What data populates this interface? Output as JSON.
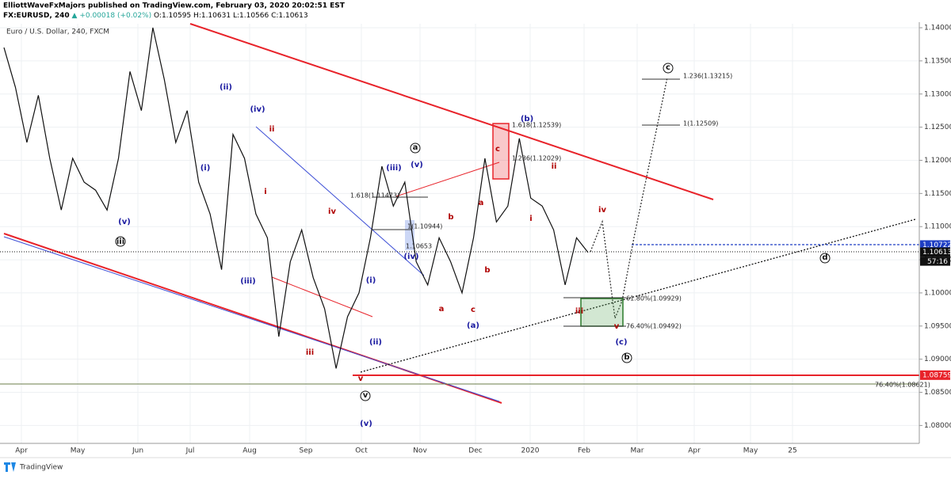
{
  "header": {
    "publisher": "ElliottWaveFxMajors published on TradingView.com, February 03, 2020 20:02:51 EST",
    "symbol": "FX:EURUSD, 240",
    "change": "▲ +0.00018 (+0.02%)",
    "open": "O:1.10595",
    "high": "H:1.10631",
    "low": "L:1.10566",
    "close": "C:1.10613",
    "brand": "TradingView"
  },
  "chart_data": {
    "type": "line",
    "title": "Euro / U.S. Dollar, 240, FXCM",
    "color": "#111111",
    "values": [
      1.137,
      1.131,
      1.1227,
      1.1298,
      1.1203,
      1.1125,
      1.1203,
      1.1167,
      1.1155,
      1.1125,
      1.1203,
      1.1334,
      1.1275,
      1.14,
      1.1322,
      1.1227,
      1.1275,
      1.1167,
      1.1119,
      1.1035,
      1.1239,
      1.1203,
      1.1119,
      1.1083,
      1.0934,
      1.1047,
      1.1095,
      1.1023,
      1.0976,
      1.0886,
      1.0964,
      1.1,
      1.1083,
      1.1191,
      1.1131,
      1.1167,
      1.1047,
      1.1012,
      1.1083,
      1.1047,
      1.1,
      1.1083,
      1.1203,
      1.1107,
      1.1131,
      1.1233,
      1.1143,
      1.1131,
      1.1095,
      1.1012,
      1.1083,
      1.1061
    ],
    "ylim": [
      1.0773,
      1.1406
    ],
    "yticks": [
      {
        "value": 1.08,
        "label": "1.08000"
      },
      {
        "value": 1.085,
        "label": "1.08500"
      },
      {
        "value": 1.09,
        "label": "1.09000"
      },
      {
        "value": 1.095,
        "label": "1.09500"
      },
      {
        "value": 1.1,
        "label": "1.10000"
      },
      {
        "value": 1.105,
        "label": "1.10500"
      },
      {
        "value": 1.11,
        "label": "1.11000"
      },
      {
        "value": 1.115,
        "label": "1.11500"
      },
      {
        "value": 1.12,
        "label": "1.12000"
      },
      {
        "value": 1.125,
        "label": "1.12500"
      },
      {
        "value": 1.13,
        "label": "1.13000"
      },
      {
        "value": 1.135,
        "label": "1.13500"
      },
      {
        "value": 1.14,
        "label": "1.14000"
      }
    ],
    "x_labels": [
      "Apr",
      "May",
      "Jun",
      "Jul",
      "Aug",
      "Sep",
      "Oct",
      "Nov",
      "Dec",
      "2020",
      "Feb",
      "Mar",
      "Apr",
      "May",
      "25"
    ],
    "grid": true,
    "price_labels": [
      {
        "value": 1.10722,
        "color": "#1e3ec4"
      },
      {
        "value": 1.10613,
        "color": "#111111"
      },
      {
        "value": 1.08759,
        "color": "#e8232a"
      }
    ],
    "countdown": "57:16",
    "annotations": [
      "(ii)",
      "(iv)",
      "ii",
      "(i)",
      "i",
      "(v)",
      "iii",
      "(iii)",
      "iv",
      "iii",
      "v",
      "v",
      "(v)",
      "(i)",
      "(ii)",
      "(iii)",
      "(v)",
      "a",
      "(iv)",
      "b",
      "a",
      "c",
      "(a)",
      "a",
      "b",
      "c",
      "(b)",
      "ii",
      "i",
      "iv",
      "iii",
      "v",
      "(c)",
      "b",
      "c",
      "d"
    ],
    "fib_labels": [
      "1.618(1.12539)",
      "1.236(1.12029)",
      "1.618(1.11473)",
      "1(1.10944)",
      "1.10653",
      "61.80%(1.09929)",
      "76.40%(1.09492)",
      "76.40%(1.08621)",
      "1.236(1.13215)",
      "1(1.12509)"
    ]
  }
}
